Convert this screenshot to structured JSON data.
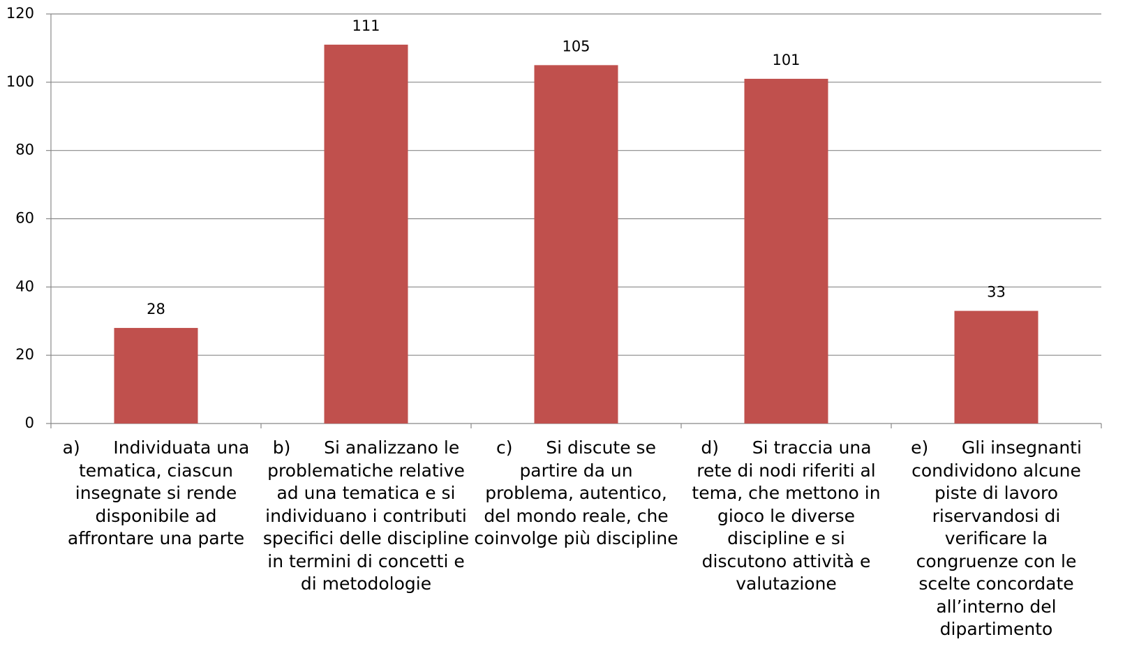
{
  "chart_data": {
    "type": "bar",
    "categories": [
      "a)      Individuata una tematica, ciascun insegnate si rende disponibile ad affrontare una parte",
      "b)      Si analizzano le problematiche relative ad una tematica e si individuano i contributi specifici delle discipline in termini di concetti e di metodologie",
      "c)      Si discute se partire da un problema, autentico, del mondo reale, che coinvolge più discipline",
      "d)      Si traccia una rete di nodi riferiti al tema, che mettono in gioco le diverse discipline e si discutono attività e valutazione",
      "e)      Gli insegnanti condividono alcune piste di lavoro riservandosi di verificare la congruenze con le scelte concordate all’interno del dipartimento"
    ],
    "values": [
      28,
      111,
      105,
      101,
      33
    ],
    "color": "#c0504d",
    "ylim": [
      0,
      120
    ],
    "yticks": [
      0,
      20,
      40,
      60,
      80,
      100,
      120
    ],
    "grid": true
  }
}
